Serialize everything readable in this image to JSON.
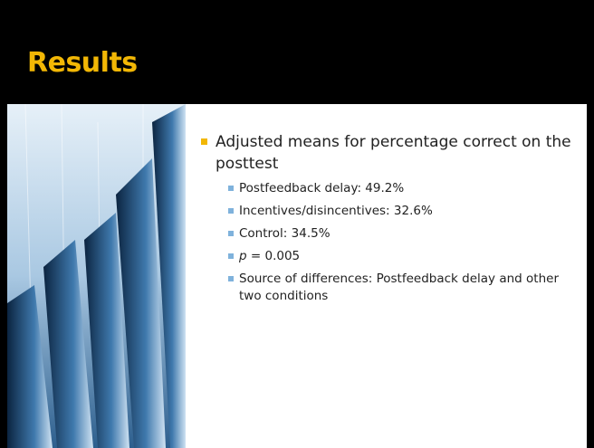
{
  "slide": {
    "title": "Results",
    "bullets": [
      {
        "text": "Adjusted means for percentage correct on the posttest",
        "children": [
          {
            "text": "Postfeedback delay: 49.2%"
          },
          {
            "text": "Incentives/disincentives: 32.6%"
          },
          {
            "text": "Control: 34.5%"
          },
          {
            "emphasis": "p",
            "text": "= 0.005"
          },
          {
            "text": "Source of differences: Postfeedback delay and other two conditions"
          }
        ]
      }
    ]
  }
}
